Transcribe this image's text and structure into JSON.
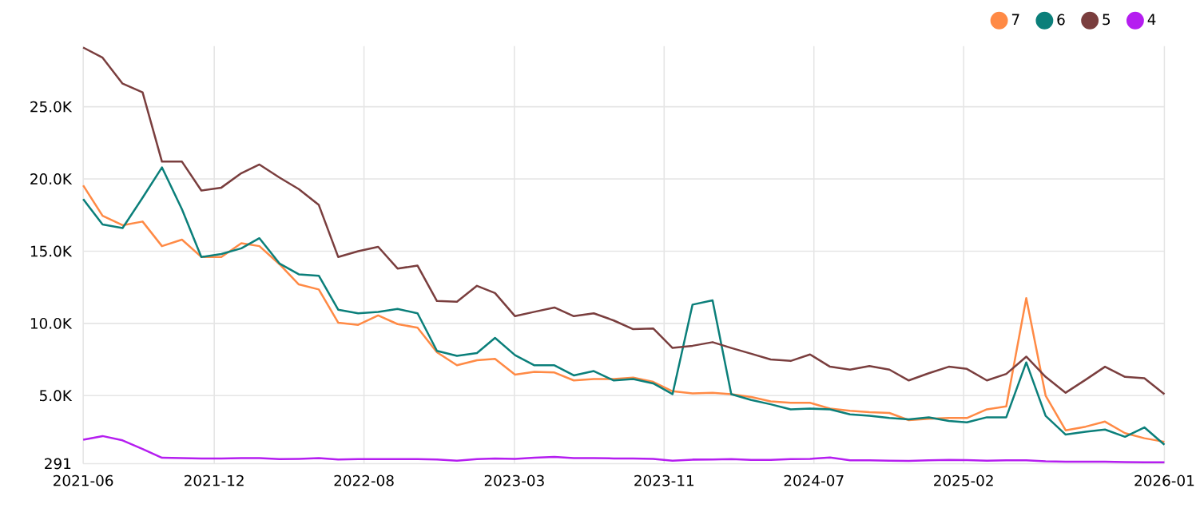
{
  "chart_data": {
    "type": "line",
    "x": [
      "2021-06",
      "2021-07",
      "2021-08",
      "2021-09",
      "2021-10",
      "2021-11",
      "2021-12",
      "2022-01",
      "2022-02",
      "2022-03",
      "2022-04",
      "2022-05",
      "2022-06",
      "2022-07",
      "2022-08",
      "2022-09",
      "2022-10",
      "2022-11",
      "2022-12",
      "2023-01",
      "2023-02",
      "2023-03",
      "2023-04",
      "2023-05",
      "2023-06",
      "2023-07",
      "2023-08",
      "2023-09",
      "2023-10",
      "2023-11",
      "2023-12",
      "2024-01",
      "2024-02",
      "2024-03",
      "2024-04",
      "2024-05",
      "2024-06",
      "2024-07",
      "2024-08",
      "2024-09",
      "2024-10",
      "2024-11",
      "2024-12",
      "2025-01",
      "2025-02",
      "2025-03",
      "2025-04",
      "2025-05",
      "2025-06",
      "2025-07",
      "2025-08",
      "2025-09",
      "2025-10",
      "2025-11",
      "2025-12",
      "2026-01"
    ],
    "series": [
      {
        "name": "7",
        "color": "#ff8a45",
        "values": [
          19550,
          17450,
          16800,
          17050,
          15350,
          15800,
          14600,
          14600,
          15550,
          15350,
          14100,
          12700,
          12350,
          10050,
          9900,
          10550,
          9950,
          9700,
          8000,
          7100,
          7450,
          7550,
          6450,
          6650,
          6600,
          6050,
          6150,
          6150,
          6250,
          5950,
          5300,
          5150,
          5200,
          5100,
          4900,
          4600,
          4500,
          4500,
          4100,
          3950,
          3850,
          3800,
          3300,
          3400,
          3450,
          3450,
          4050,
          4250,
          11750,
          5000,
          2600,
          2850,
          3200,
          2400,
          2050,
          1800
        ]
      },
      {
        "name": "6",
        "color": "#0b7f7a",
        "values": [
          18600,
          16850,
          16600,
          18700,
          20800,
          17900,
          14600,
          14800,
          15200,
          15900,
          14150,
          13400,
          13300,
          10950,
          10700,
          10800,
          11000,
          10700,
          8100,
          7750,
          7950,
          9000,
          7800,
          7100,
          7100,
          6400,
          6700,
          6050,
          6150,
          5850,
          5100,
          11300,
          11600,
          5100,
          4700,
          4400,
          4050,
          4100,
          4050,
          3700,
          3600,
          3450,
          3350,
          3500,
          3250,
          3150,
          3500,
          3500,
          7300,
          3600,
          2300,
          2500,
          2650,
          2150,
          2800,
          1600
        ]
      },
      {
        "name": "5",
        "color": "#7a3e3e",
        "values": [
          29100,
          28400,
          26600,
          26000,
          21200,
          21200,
          19200,
          19400,
          20400,
          21000,
          20100,
          19300,
          18200,
          14600,
          15000,
          15300,
          13800,
          14000,
          11550,
          11500,
          12600,
          12100,
          10500,
          10800,
          11100,
          10500,
          10700,
          10200,
          9600,
          9650,
          8300,
          8450,
          8700,
          8300,
          7900,
          7500,
          7400,
          7850,
          7000,
          6800,
          7050,
          6800,
          6050,
          6550,
          7000,
          6850,
          6050,
          6500,
          7700,
          6300,
          5200,
          6100,
          7000,
          6300,
          6200,
          5100
        ]
      },
      {
        "name": "4",
        "color": "#b51ef0",
        "values": [
          1950,
          2200,
          1900,
          1300,
          700,
          680,
          650,
          650,
          670,
          670,
          600,
          620,
          670,
          580,
          600,
          600,
          600,
          600,
          580,
          500,
          600,
          650,
          620,
          700,
          750,
          680,
          670,
          650,
          650,
          620,
          500,
          570,
          580,
          600,
          550,
          550,
          600,
          620,
          720,
          520,
          520,
          500,
          480,
          520,
          550,
          530,
          500,
          520,
          520,
          450,
          420,
          420,
          420,
          400,
          380,
          380
        ]
      }
    ],
    "xlim": [
      "2021-06",
      "2026-01"
    ],
    "xticks": [
      {
        "value": "2021-06",
        "label": "2021-06"
      },
      {
        "value": "2021-12-21",
        "label": "2021-12"
      },
      {
        "value": "2022-08-10",
        "label": "2022-08"
      },
      {
        "value": "2023-03-31",
        "label": "2023-03"
      },
      {
        "value": "2023-11-18",
        "label": "2023-11"
      },
      {
        "value": "2024-07-07",
        "label": "2024-07"
      },
      {
        "value": "2025-02-24",
        "label": "2025-02"
      },
      {
        "value": "2026-01",
        "label": "2026-01"
      }
    ],
    "ylim": [
      291,
      29200
    ],
    "yticks": [
      291,
      {
        "value": 5000,
        "label": "5.0K"
      },
      {
        "value": 10000,
        "label": "10.0K"
      },
      {
        "value": 15000,
        "label": "15.0K"
      },
      {
        "value": 20000,
        "label": "20.0K"
      },
      {
        "value": 25000,
        "label": "25.0K"
      }
    ],
    "grid": true,
    "legend": "top right",
    "marker": "none",
    "line_style": "solid"
  }
}
